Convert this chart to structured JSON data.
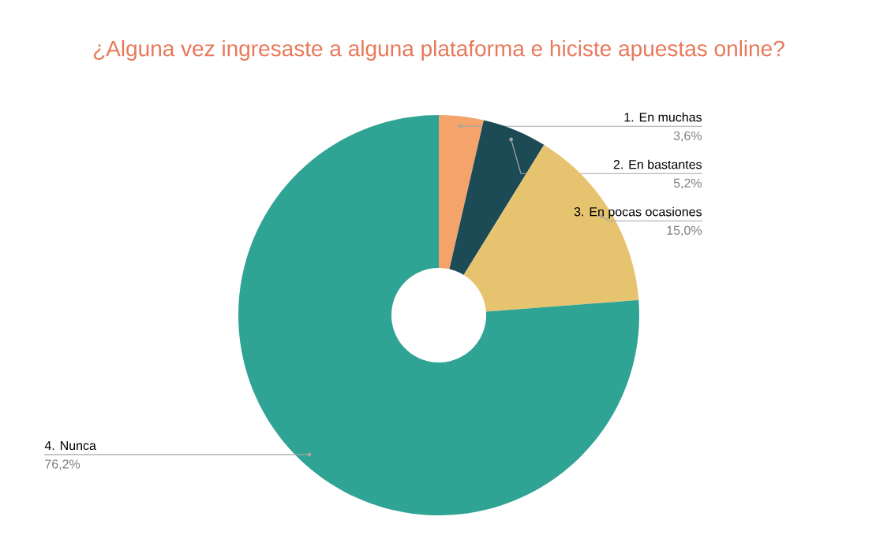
{
  "chart_data": {
    "type": "donut",
    "title": "¿Alguna vez ingresaste a alguna plataforma e hiciste apuestas online?",
    "categories": [
      "1. En muchas",
      "2. En bastantes",
      "3. En pocas ocasiones",
      "4. Nunca"
    ],
    "values": [
      3.6,
      5.2,
      15.0,
      76.2
    ],
    "value_labels": [
      "3,6%",
      "5,2%",
      "15,0%",
      "76,2%"
    ],
    "colors": [
      "#f4a36b",
      "#1c4a55",
      "#e6c46f",
      "#2fa394"
    ]
  }
}
